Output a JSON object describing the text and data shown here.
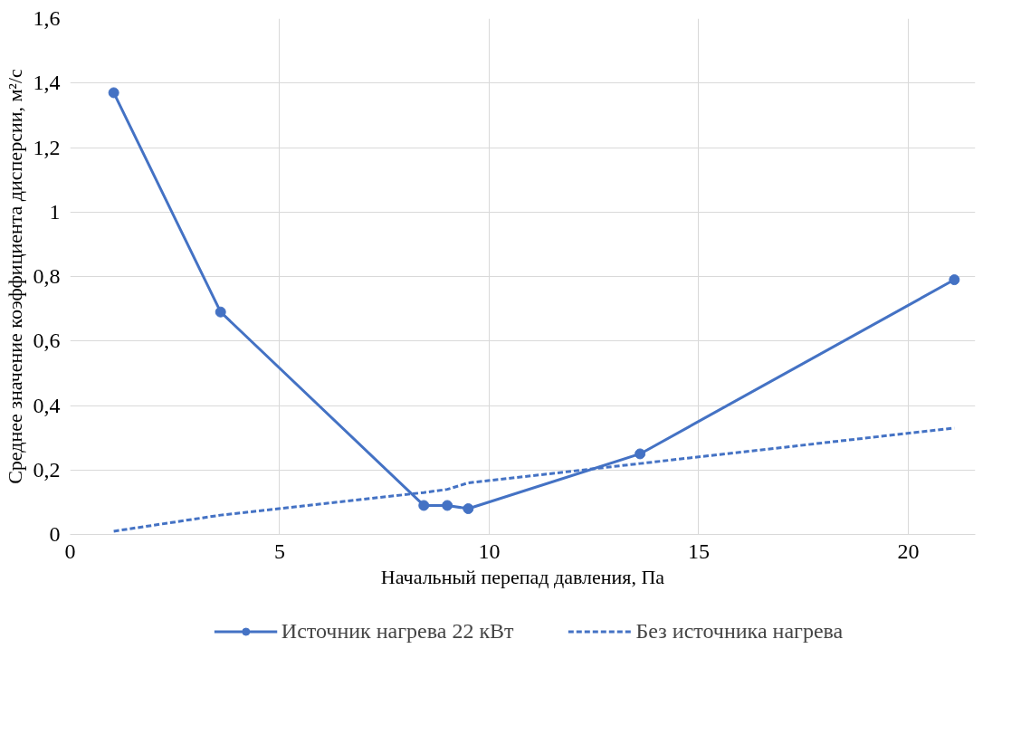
{
  "chart_data": {
    "type": "line",
    "xlabel": "Начальный перепад давления, Па",
    "ylabel": "Среднее значение коэффициента дисперсии, м²/с",
    "xlim": [
      0,
      21.6
    ],
    "xticks": [
      0,
      5,
      10,
      15,
      20
    ],
    "ylim": [
      0,
      1.6
    ],
    "yticks": [
      {
        "value": 0,
        "label": "0"
      },
      {
        "value": 0.2,
        "label": "0,2"
      },
      {
        "value": 0.4,
        "label": "0,4"
      },
      {
        "value": 0.6,
        "label": "0,6"
      },
      {
        "value": 0.8,
        "label": "0,8"
      },
      {
        "value": 1,
        "label": "1"
      },
      {
        "value": 1.2,
        "label": "1,2"
      },
      {
        "value": 1.4,
        "label": "1,4"
      },
      {
        "value": 1.6,
        "label": "1,6"
      }
    ],
    "grid": true,
    "legend": "bottom",
    "series": [
      {
        "name": "Источник нагрева 22 кВт",
        "color": "#4472c4",
        "marker": "circle",
        "line_style": "solid",
        "x": [
          1.04,
          3.59,
          8.44,
          9.0,
          9.5,
          13.6,
          21.1
        ],
        "values": [
          1.37,
          0.69,
          0.09,
          0.09,
          0.08,
          0.25,
          0.79
        ]
      },
      {
        "name": "Без источника нагрева",
        "color": "#4472c4",
        "marker": "none",
        "line_style": "dashed",
        "x": [
          1.04,
          3.59,
          8.44,
          9.0,
          9.5,
          13.6,
          21.1
        ],
        "values": [
          0.01,
          0.06,
          0.13,
          0.14,
          0.16,
          0.22,
          0.33
        ]
      }
    ]
  }
}
